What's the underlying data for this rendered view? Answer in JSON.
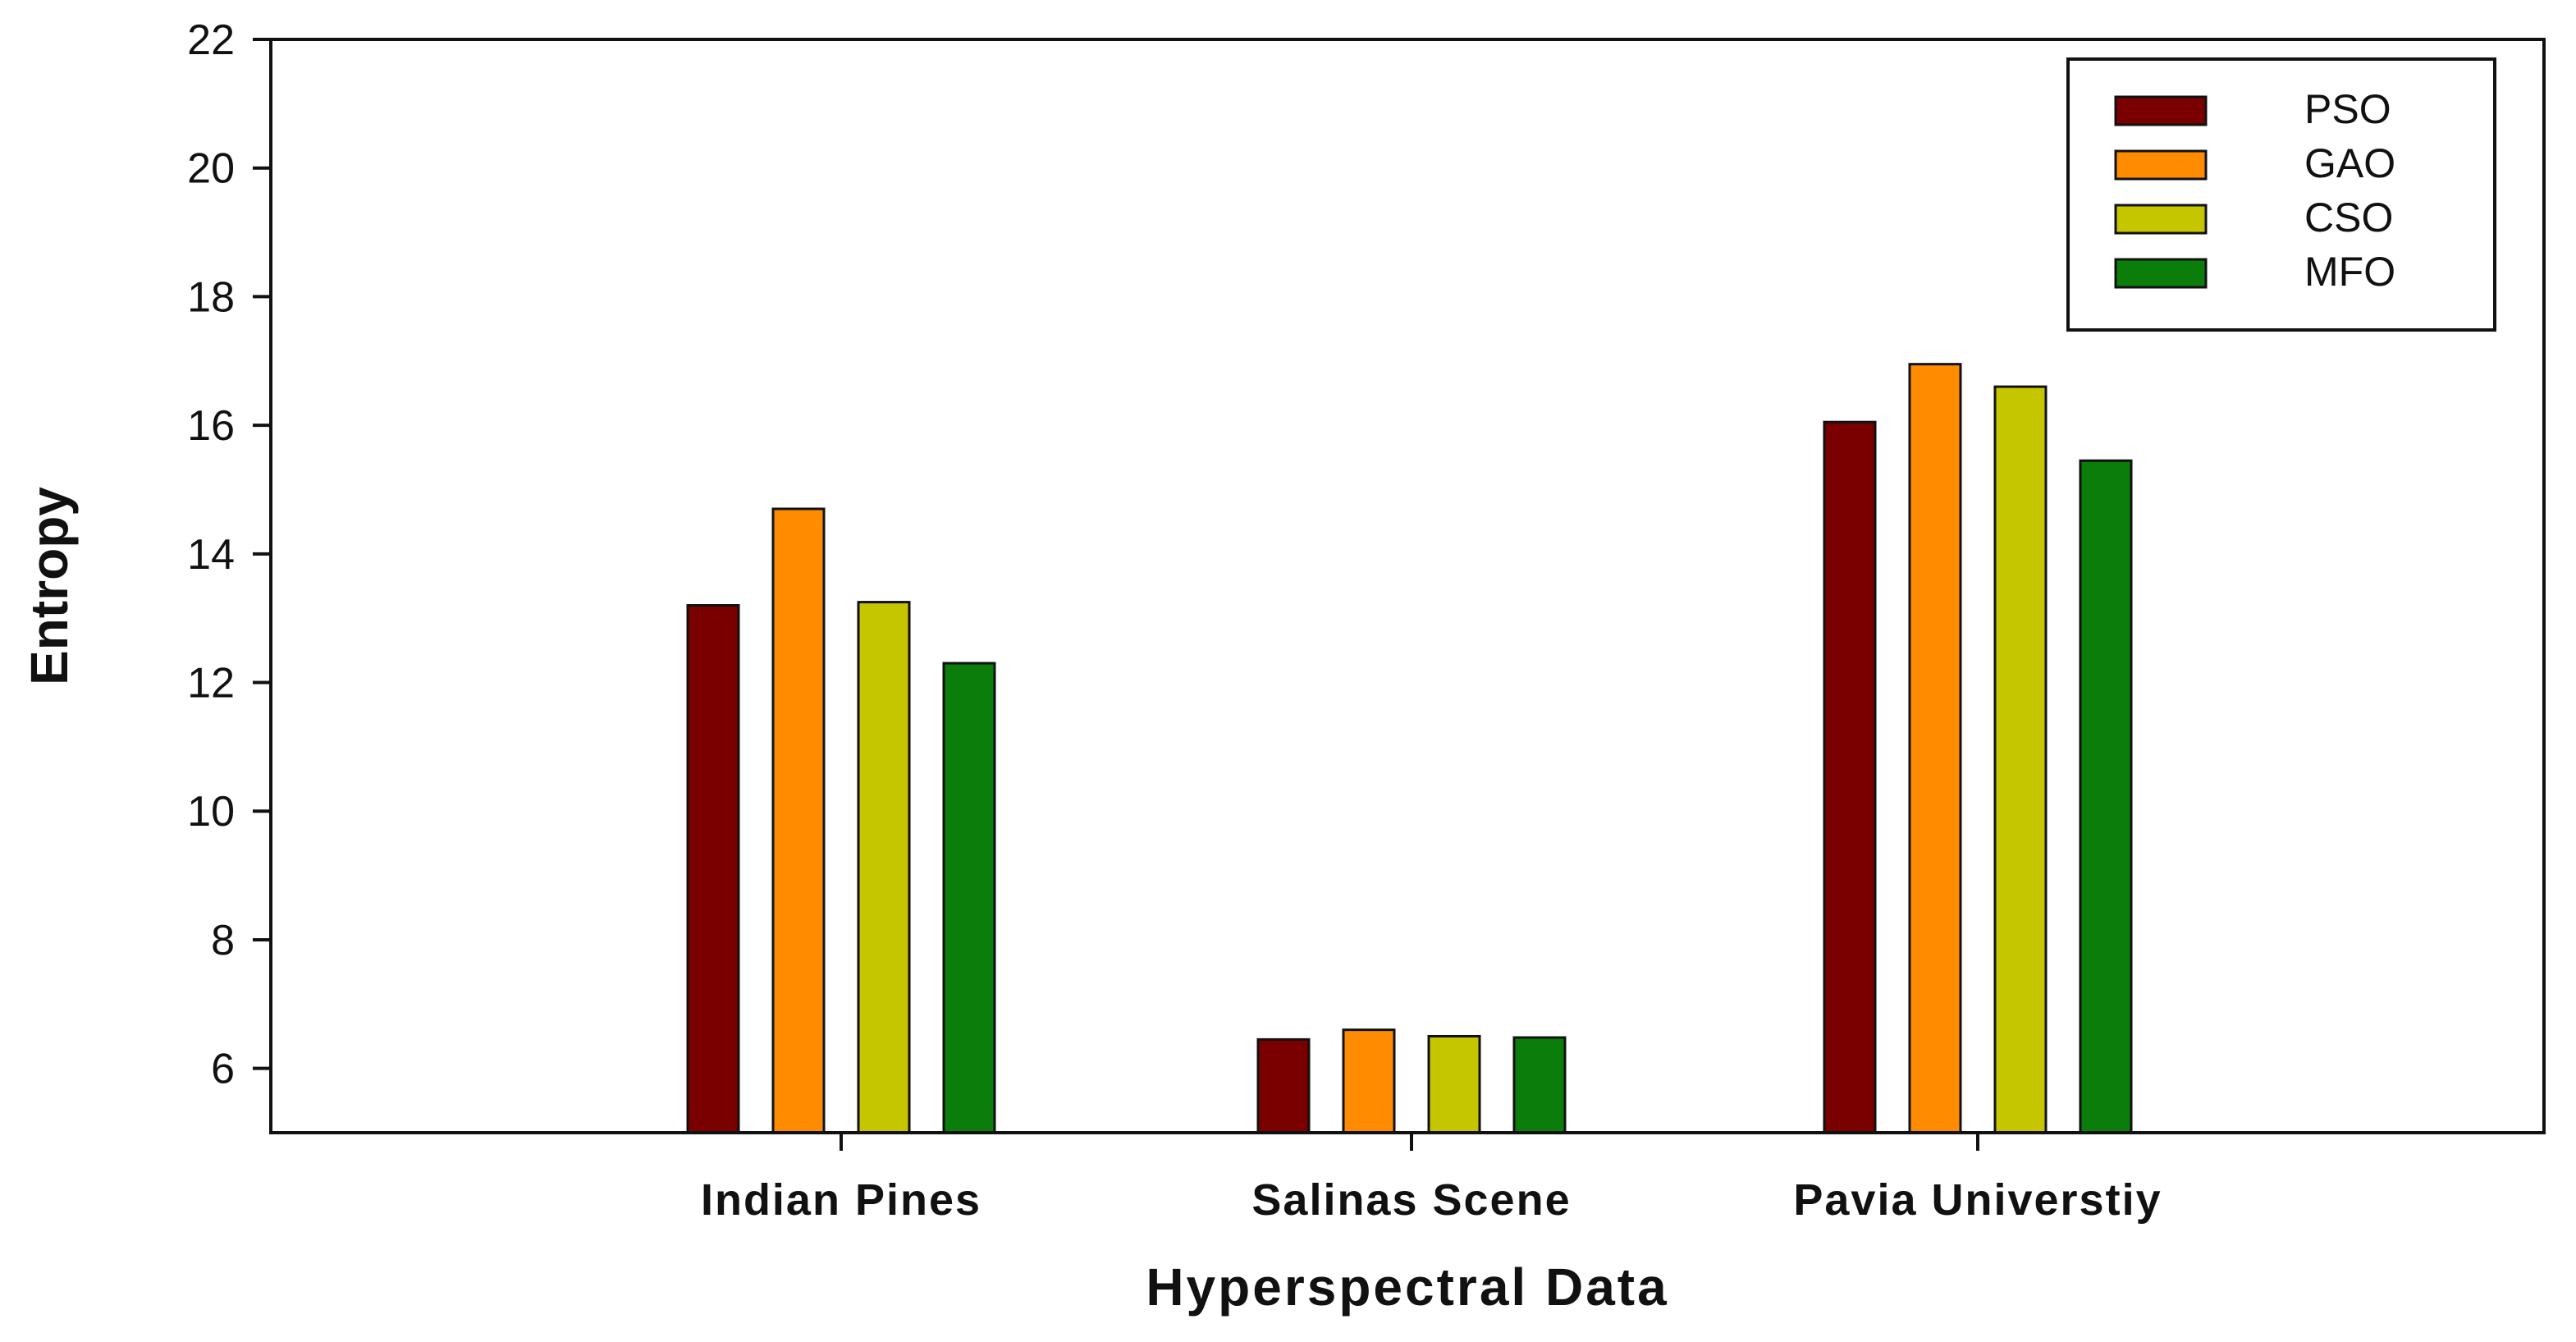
{
  "chart_data": {
    "type": "bar",
    "title": "",
    "xlabel": "Hyperspectral Data",
    "ylabel": "Entropy",
    "categories": [
      "Indian Pines",
      "Salinas Scene",
      "Pavia Universtiy"
    ],
    "ylim": [
      5,
      22
    ],
    "yticks": [
      "6",
      "8",
      "10",
      "12",
      "14",
      "16",
      "18",
      "20",
      "22"
    ],
    "grid": false,
    "legend_position": "top-right",
    "series": [
      {
        "name": "PSO",
        "color": "#7a0000",
        "values": [
          13.2,
          6.45,
          16.05
        ]
      },
      {
        "name": "GAO",
        "color": "#ff8c00",
        "values": [
          14.7,
          6.6,
          16.95
        ]
      },
      {
        "name": "CSO",
        "color": "#c6c600",
        "values": [
          13.25,
          6.5,
          16.6
        ]
      },
      {
        "name": "MFO",
        "color": "#0a7d0a",
        "values": [
          12.3,
          6.48,
          15.45
        ]
      }
    ]
  }
}
